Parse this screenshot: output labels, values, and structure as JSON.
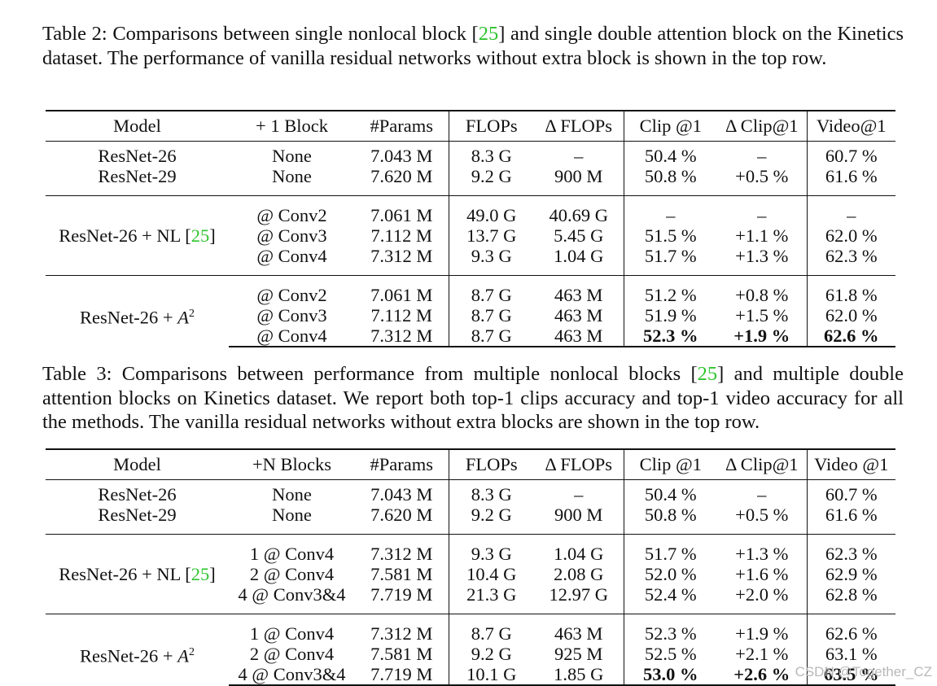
{
  "table2": {
    "caption_pre": "Table 2: Comparisons between single nonlocal block [",
    "caption_cite": "25",
    "caption_post": "] and single double attention block on the Kinetics dataset. The performance of vanilla residual networks without extra block is shown in the top row.",
    "headers": [
      "Model",
      "+ 1 Block",
      "#Params",
      "FLOPs",
      "Δ FLOPs",
      "Clip @1",
      "Δ Clip@1",
      "Video@1"
    ],
    "groups": [
      {
        "model": "",
        "rows": [
          {
            "model": "ResNet-26",
            "block": "None",
            "params": "7.043 M",
            "flops": "8.3 G",
            "dflops": "–",
            "clip": "50.4 %",
            "dclip": "–",
            "video": "60.7 %"
          },
          {
            "model": "ResNet-29",
            "block": "None",
            "params": "7.620 M",
            "flops": "9.2 G",
            "dflops": "900 M",
            "clip": "50.8 %",
            "dclip": "+0.5 %",
            "video": "61.6 %"
          }
        ]
      },
      {
        "model_pre": "ResNet-26 + NL [",
        "model_cite": "25",
        "model_post": "]",
        "rows": [
          {
            "block": "@ Conv2",
            "params": "7.061 M",
            "flops": "49.0 G",
            "dflops": "40.69 G",
            "clip": "–",
            "dclip": "–",
            "video": "–"
          },
          {
            "block": "@ Conv3",
            "params": "7.112 M",
            "flops": "13.7 G",
            "dflops": "5.45 G",
            "clip": "51.5 %",
            "dclip": "+1.1 %",
            "video": "62.0 %"
          },
          {
            "block": "@ Conv4",
            "params": "7.312 M",
            "flops": "9.3 G",
            "dflops": "1.04 G",
            "clip": "51.7 %",
            "dclip": "+1.3 %",
            "video": "62.3 %"
          }
        ]
      },
      {
        "model_base": "ResNet-26 + A",
        "model_sup": "2",
        "rows": [
          {
            "block": "@ Conv2",
            "params": "7.061 M",
            "flops": "8.7 G",
            "dflops": "463 M",
            "clip": "51.2 %",
            "dclip": "+0.8 %",
            "video": "61.8 %"
          },
          {
            "block": "@ Conv3",
            "params": "7.112 M",
            "flops": "8.7 G",
            "dflops": "463 M",
            "clip": "51.9 %",
            "dclip": "+1.5 %",
            "video": "62.0 %"
          },
          {
            "block": "@ Conv4",
            "params": "7.312 M",
            "flops": "8.7 G",
            "dflops": "463 M",
            "clip": "52.3 %",
            "dclip": "+1.9 %",
            "video": "62.6 %"
          }
        ]
      }
    ]
  },
  "table3": {
    "caption_pre": "Table 3: Comparisons between performance from multiple nonlocal blocks [",
    "caption_cite": "25",
    "caption_post": "] and multiple double attention blocks on Kinetics dataset. We report both top-1 clips accuracy and top-1 video accuracy for all the methods. The vanilla residual networks without extra blocks are shown in the top row.",
    "headers": [
      "Model",
      "+N Blocks",
      "#Params",
      "FLOPs",
      "Δ FLOPs",
      "Clip @1",
      "Δ Clip@1",
      "Video @1"
    ],
    "groups": [
      {
        "rows": [
          {
            "model": "ResNet-26",
            "block": "None",
            "params": "7.043 M",
            "flops": "8.3 G",
            "dflops": "–",
            "clip": "50.4 %",
            "dclip": "–",
            "video": "60.7 %"
          },
          {
            "model": "ResNet-29",
            "block": "None",
            "params": "7.620 M",
            "flops": "9.2 G",
            "dflops": "900 M",
            "clip": "50.8 %",
            "dclip": "+0.5 %",
            "video": "61.6 %"
          }
        ]
      },
      {
        "model_pre": "ResNet-26 + NL [",
        "model_cite": "25",
        "model_post": "]",
        "rows": [
          {
            "block": "1 @ Conv4",
            "params": "7.312 M",
            "flops": "9.3 G",
            "dflops": "1.04 G",
            "clip": "51.7 %",
            "dclip": "+1.3 %",
            "video": "62.3 %"
          },
          {
            "block": "2 @ Conv4",
            "params": "7.581 M",
            "flops": "10.4 G",
            "dflops": "2.08 G",
            "clip": "52.0 %",
            "dclip": "+1.6 %",
            "video": "62.9 %"
          },
          {
            "block": "4 @ Conv3&4",
            "params": "7.719 M",
            "flops": "21.3 G",
            "dflops": "12.97 G",
            "clip": "52.4 %",
            "dclip": "+2.0 %",
            "video": "62.8 %"
          }
        ]
      },
      {
        "model_base": "ResNet-26 + A",
        "model_sup": "2",
        "rows": [
          {
            "block": "1 @ Conv4",
            "params": "7.312 M",
            "flops": "8.7 G",
            "dflops": "463 M",
            "clip": "52.3 %",
            "dclip": "+1.9 %",
            "video": "62.6 %"
          },
          {
            "block": "2 @ Conv4",
            "params": "7.581 M",
            "flops": "9.2 G",
            "dflops": "925 M",
            "clip": "52.5 %",
            "dclip": "+2.1 %",
            "video": "63.1 %"
          },
          {
            "block": "4 @ Conv3&4",
            "params": "7.719 M",
            "flops": "10.1 G",
            "dflops": "1.85 G",
            "clip": "53.0 %",
            "dclip": "+2.6 %",
            "video": "63.5 %"
          }
        ]
      }
    ]
  },
  "watermark": "CSDN @Together_CZ",
  "colors": {
    "citation": "#2fc42f",
    "text": "#111111",
    "watermark": "#b8b8b8"
  }
}
